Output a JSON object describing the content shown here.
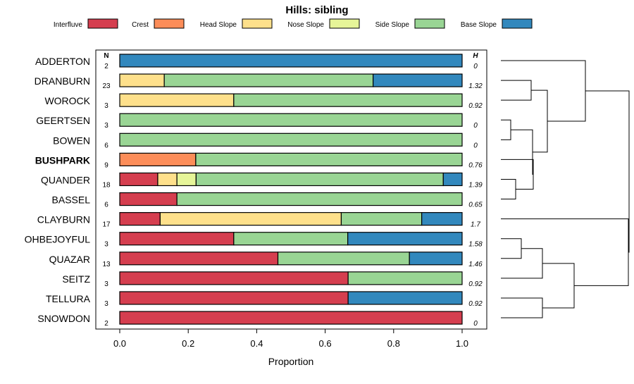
{
  "colors": {
    "Interfluve": "#d53e4f",
    "Crest": "#fc8d59",
    "Head Slope": "#fee08b",
    "Nose Slope": "#e6f598",
    "Side Slope": "#99d594",
    "Base Slope": "#3288bd"
  },
  "chart_data": {
    "type": "bar",
    "orientation": "horizontal-stacked",
    "title": "Hills: sibling",
    "xlabel": "Proportion",
    "xlim": [
      0,
      1
    ],
    "x_ticks": [
      "0.0",
      "0.2",
      "0.4",
      "0.6",
      "0.8",
      "1.0"
    ],
    "n_header": "N",
    "h_header": "H",
    "highlight": "BUSHPARK",
    "legend": [
      "Interfluve",
      "Crest",
      "Head Slope",
      "Nose Slope",
      "Side Slope",
      "Base Slope"
    ],
    "series_order": [
      "Interfluve",
      "Crest",
      "Head Slope",
      "Nose Slope",
      "Side Slope",
      "Base Slope"
    ],
    "rows": [
      {
        "label": "ADDERTON",
        "n": "2",
        "h": "0",
        "values": [
          0,
          0,
          0,
          0,
          0,
          1
        ]
      },
      {
        "label": "DRANBURN",
        "n": "23",
        "h": "1.32",
        "values": [
          0,
          0,
          0.13,
          0,
          0.61,
          0.26
        ]
      },
      {
        "label": "WOROCK",
        "n": "3",
        "h": "0.92",
        "values": [
          0,
          0,
          0.333,
          0,
          0.667,
          0
        ]
      },
      {
        "label": "GEERTSEN",
        "n": "3",
        "h": "0",
        "values": [
          0,
          0,
          0,
          0,
          1,
          0
        ]
      },
      {
        "label": "BOWEN",
        "n": "6",
        "h": "0",
        "values": [
          0,
          0,
          0,
          0,
          1,
          0
        ]
      },
      {
        "label": "BUSHPARK",
        "n": "9",
        "h": "0.76",
        "values": [
          0,
          0.222,
          0,
          0,
          0.778,
          0
        ]
      },
      {
        "label": "QUANDER",
        "n": "18",
        "h": "1.39",
        "values": [
          0.111,
          0,
          0.056,
          0.056,
          0.722,
          0.055
        ]
      },
      {
        "label": "BASSEL",
        "n": "6",
        "h": "0.65",
        "values": [
          0.167,
          0,
          0,
          0,
          0.833,
          0
        ]
      },
      {
        "label": "CLAYBURN",
        "n": "17",
        "h": "1.7",
        "values": [
          0.118,
          0,
          0.529,
          0,
          0.235,
          0.118
        ]
      },
      {
        "label": "OHBEJOYFUL",
        "n": "3",
        "h": "1.58",
        "values": [
          0.333,
          0,
          0,
          0,
          0.333,
          0.334
        ]
      },
      {
        "label": "QUAZAR",
        "n": "13",
        "h": "1.46",
        "values": [
          0.462,
          0,
          0,
          0,
          0.384,
          0.154
        ]
      },
      {
        "label": "SEITZ",
        "n": "3",
        "h": "0.92",
        "values": [
          0.667,
          0,
          0,
          0,
          0.333,
          0
        ]
      },
      {
        "label": "TELLURA",
        "n": "3",
        "h": "0.92",
        "values": [
          0.667,
          0,
          0,
          0,
          0,
          0.333
        ]
      },
      {
        "label": "SNOWDON",
        "n": "2",
        "h": "0",
        "values": [
          1,
          0,
          0,
          0,
          0,
          0
        ]
      }
    ]
  }
}
